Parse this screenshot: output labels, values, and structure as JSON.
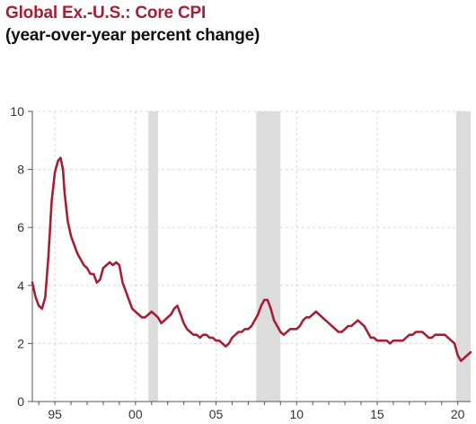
{
  "title": "Global Ex.-U.S.: Core CPI",
  "subtitle": "(year-over-year percent change)",
  "colors": {
    "line": "#a32035",
    "recession": "#dcdcdc",
    "grid": "#d9d9d9",
    "axis": "#555555"
  },
  "chart_data": {
    "type": "line",
    "title": "Global Ex.-U.S.: Core CPI",
    "subtitle": "(year-over-year percent change)",
    "xlabel": "",
    "ylabel": "",
    "xlim": [
      1993.6,
      2020.8
    ],
    "ylim": [
      0,
      10
    ],
    "yticks": [
      0,
      2,
      4,
      6,
      8,
      10
    ],
    "xticks": [
      {
        "year": 1995,
        "label": "95"
      },
      {
        "year": 2000,
        "label": "00"
      },
      {
        "year": 2005,
        "label": "05"
      },
      {
        "year": 2010,
        "label": "10"
      },
      {
        "year": 2015,
        "label": "15"
      },
      {
        "year": 2020,
        "label": "20"
      }
    ],
    "grid": true,
    "recession_shading": [
      [
        2000.8,
        2001.4
      ],
      [
        2007.5,
        2009.0
      ],
      [
        2019.9,
        2020.8
      ]
    ],
    "series": [
      {
        "color": "#a32035",
        "x": [
          1993.6,
          1993.8,
          1994.0,
          1994.2,
          1994.4,
          1994.6,
          1994.8,
          1995.0,
          1995.2,
          1995.35,
          1995.5,
          1995.6,
          1995.8,
          1996.0,
          1996.2,
          1996.4,
          1996.6,
          1996.8,
          1997.0,
          1997.2,
          1997.4,
          1997.6,
          1997.8,
          1998.0,
          1998.2,
          1998.4,
          1998.6,
          1998.8,
          1999.0,
          1999.2,
          1999.4,
          1999.6,
          1999.8,
          2000.0,
          2000.2,
          2000.4,
          2000.6,
          2000.8,
          2001.0,
          2001.2,
          2001.4,
          2001.6,
          2001.8,
          2002.0,
          2002.2,
          2002.4,
          2002.6,
          2002.8,
          2003.0,
          2003.2,
          2003.4,
          2003.6,
          2003.8,
          2004.0,
          2004.2,
          2004.4,
          2004.6,
          2004.8,
          2005.0,
          2005.2,
          2005.4,
          2005.6,
          2005.8,
          2006.0,
          2006.2,
          2006.4,
          2006.6,
          2006.8,
          2007.0,
          2007.2,
          2007.4,
          2007.6,
          2007.8,
          2008.0,
          2008.2,
          2008.4,
          2008.6,
          2008.8,
          2009.0,
          2009.2,
          2009.4,
          2009.6,
          2009.8,
          2010.0,
          2010.2,
          2010.4,
          2010.6,
          2010.8,
          2011.0,
          2011.2,
          2011.4,
          2011.6,
          2011.8,
          2012.0,
          2012.2,
          2012.4,
          2012.6,
          2012.8,
          2013.0,
          2013.2,
          2013.4,
          2013.6,
          2013.8,
          2014.0,
          2014.2,
          2014.4,
          2014.6,
          2014.8,
          2015.0,
          2015.2,
          2015.4,
          2015.6,
          2015.8,
          2016.0,
          2016.2,
          2016.4,
          2016.6,
          2016.8,
          2017.0,
          2017.2,
          2017.4,
          2017.6,
          2017.8,
          2018.0,
          2018.2,
          2018.4,
          2018.6,
          2018.8,
          2019.0,
          2019.2,
          2019.4,
          2019.6,
          2019.8,
          2020.0,
          2020.2,
          2020.4,
          2020.6,
          2020.8
        ],
        "y": [
          4.1,
          3.6,
          3.3,
          3.2,
          3.6,
          5.0,
          6.9,
          7.9,
          8.3,
          8.4,
          8.0,
          7.2,
          6.2,
          5.7,
          5.4,
          5.1,
          4.9,
          4.7,
          4.6,
          4.4,
          4.4,
          4.1,
          4.2,
          4.6,
          4.7,
          4.8,
          4.7,
          4.8,
          4.7,
          4.1,
          3.8,
          3.5,
          3.2,
          3.1,
          3.0,
          2.9,
          2.9,
          3.0,
          3.1,
          3.0,
          2.9,
          2.7,
          2.8,
          2.9,
          3.0,
          3.2,
          3.3,
          3.0,
          2.7,
          2.5,
          2.4,
          2.3,
          2.3,
          2.2,
          2.3,
          2.3,
          2.2,
          2.2,
          2.1,
          2.1,
          2.0,
          1.9,
          2.0,
          2.2,
          2.3,
          2.4,
          2.4,
          2.5,
          2.5,
          2.6,
          2.8,
          3.0,
          3.3,
          3.5,
          3.5,
          3.2,
          2.8,
          2.6,
          2.4,
          2.3,
          2.4,
          2.5,
          2.5,
          2.5,
          2.6,
          2.8,
          2.9,
          2.9,
          3.0,
          3.1,
          3.0,
          2.9,
          2.8,
          2.7,
          2.6,
          2.5,
          2.4,
          2.4,
          2.5,
          2.6,
          2.6,
          2.7,
          2.8,
          2.7,
          2.6,
          2.4,
          2.2,
          2.2,
          2.1,
          2.1,
          2.1,
          2.1,
          2.0,
          2.1,
          2.1,
          2.1,
          2.1,
          2.2,
          2.3,
          2.3,
          2.4,
          2.4,
          2.4,
          2.3,
          2.2,
          2.2,
          2.3,
          2.3,
          2.3,
          2.3,
          2.2,
          2.1,
          2.0,
          1.6,
          1.4,
          1.5,
          1.6,
          1.7
        ]
      }
    ]
  }
}
